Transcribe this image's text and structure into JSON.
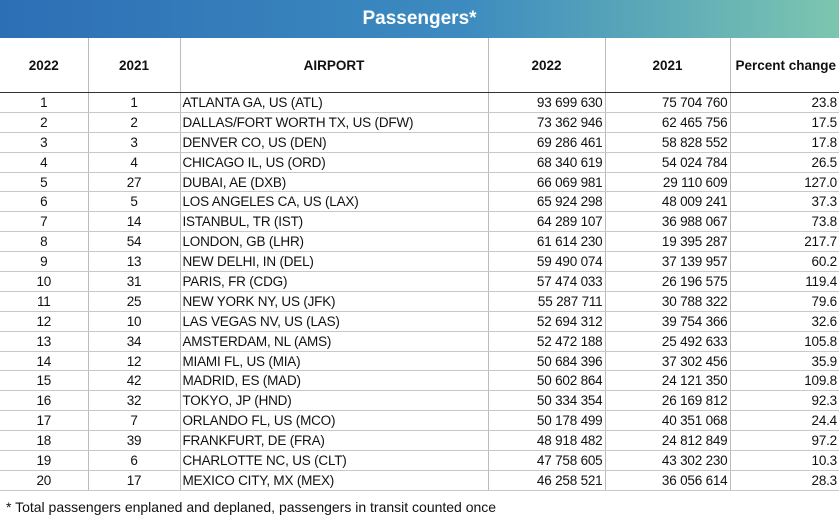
{
  "title": "Passengers*",
  "table": {
    "columns": [
      "2022",
      "2021",
      "AIRPORT",
      "2022",
      "2021",
      "Percent change"
    ],
    "rows": [
      [
        "1",
        "1",
        "ATLANTA GA, US (ATL)",
        "93 699 630",
        "75 704 760",
        "23.8"
      ],
      [
        "2",
        "2",
        "DALLAS/FORT WORTH TX, US (DFW)",
        "73 362 946",
        "62 465 756",
        "17.5"
      ],
      [
        "3",
        "3",
        "DENVER CO, US (DEN)",
        "69 286 461",
        "58 828 552",
        "17.8"
      ],
      [
        "4",
        "4",
        "CHICAGO IL, US (ORD)",
        "68 340 619",
        "54 024 784",
        "26.5"
      ],
      [
        "5",
        "27",
        "DUBAI, AE (DXB)",
        "66 069 981",
        "29 110 609",
        "127.0"
      ],
      [
        "6",
        "5",
        "LOS ANGELES CA, US (LAX)",
        "65 924 298",
        "48 009 241",
        "37.3"
      ],
      [
        "7",
        "14",
        "ISTANBUL, TR (IST)",
        "64 289 107",
        "36 988 067",
        "73.8"
      ],
      [
        "8",
        "54",
        "LONDON, GB (LHR)",
        "61 614 230",
        "19 395 287",
        "217.7"
      ],
      [
        "9",
        "13",
        "NEW DELHI, IN (DEL)",
        "59 490 074",
        "37 139 957",
        "60.2"
      ],
      [
        "10",
        "31",
        "PARIS, FR (CDG)",
        "57 474 033",
        "26 196 575",
        "119.4"
      ],
      [
        "11",
        "25",
        "NEW YORK NY, US (JFK)",
        "55 287 711",
        "30 788 322",
        "79.6"
      ],
      [
        "12",
        "10",
        "LAS VEGAS NV, US (LAS)",
        "52 694 312",
        "39 754 366",
        "32.6"
      ],
      [
        "13",
        "34",
        "AMSTERDAM, NL (AMS)",
        "52 472 188",
        "25 492 633",
        "105.8"
      ],
      [
        "14",
        "12",
        "MIAMI FL, US (MIA)",
        "50 684 396",
        "37 302 456",
        "35.9"
      ],
      [
        "15",
        "42",
        "MADRID, ES (MAD)",
        "50 602 864",
        "24 121 350",
        "109.8"
      ],
      [
        "16",
        "32",
        "TOKYO, JP (HND)",
        "50 334 354",
        "26 169 812",
        "92.3"
      ],
      [
        "17",
        "7",
        "ORLANDO FL, US (MCO)",
        "50 178 499",
        "40 351 068",
        "24.4"
      ],
      [
        "18",
        "39",
        "FRANKFURT, DE (FRA)",
        "48 918 482",
        "24 812 849",
        "97.2"
      ],
      [
        "19",
        "6",
        "CHARLOTTE NC, US (CLT)",
        "47 758 605",
        "43 302 230",
        "10.3"
      ],
      [
        "20",
        "17",
        "MEXICO CITY, MX (MEX)",
        "46 258 521",
        "36 056 614",
        "28.3"
      ]
    ]
  },
  "footnote": "* Total passengers enplaned and deplaned, passengers in transit counted once"
}
